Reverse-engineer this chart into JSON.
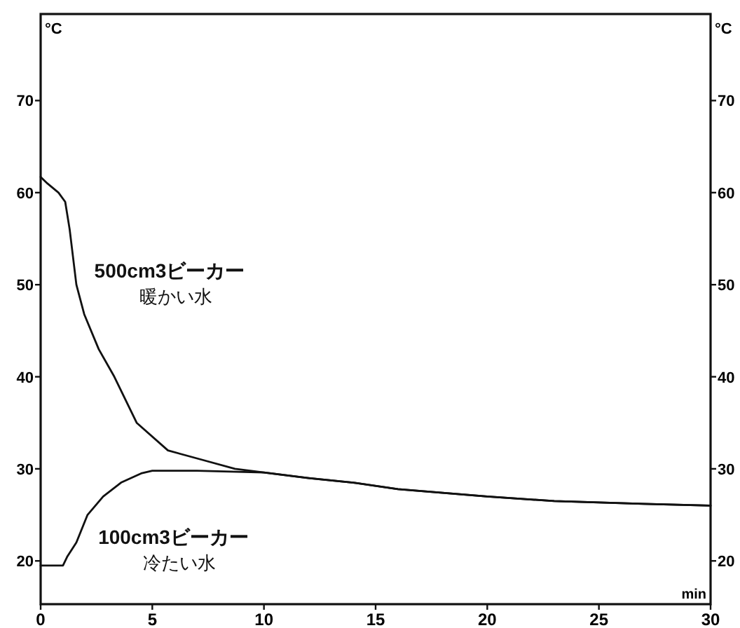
{
  "chart_data": {
    "type": "line",
    "xlabel": "min",
    "ylabel": "°C",
    "y2label": "°C",
    "xlim": [
      0,
      30
    ],
    "xticks": [
      0,
      5,
      10,
      15,
      20,
      25,
      30
    ],
    "ylim": [
      15.3,
      79.4
    ],
    "yticks": [
      20,
      30,
      40,
      50,
      60,
      70
    ],
    "y2lim": [
      15.3,
      79.4
    ],
    "y2ticks": [
      20,
      30,
      40,
      50,
      60,
      70
    ],
    "grid": false,
    "marker": "none",
    "line_style": "solid",
    "annotations": [
      "暖かい水",
      "冷たい水"
    ],
    "series": [
      {
        "name": "500cm3ビーカー",
        "color": "#111111",
        "x": [
          0,
          0.3,
          0.8,
          1.1,
          1.3,
          1.6,
          1.95,
          2.6,
          3.3,
          4.3,
          5.7,
          7.2,
          8.7,
          10,
          12,
          14,
          16,
          18,
          20,
          23,
          27,
          30
        ],
        "values": [
          61.7,
          61,
          60,
          59,
          56,
          50,
          46.8,
          43,
          40,
          35,
          32,
          31,
          30,
          29.6,
          29,
          28.5,
          27.8,
          27.4,
          27,
          26.5,
          26.2,
          26
        ]
      },
      {
        "name": "100cm3ビーカー",
        "color": "#111111",
        "x": [
          0,
          1.0,
          1.2,
          1.6,
          2.1,
          2.8,
          3.6,
          4.5,
          5,
          7,
          10,
          12,
          14,
          16,
          18,
          20,
          23,
          27,
          30
        ],
        "values": [
          19.5,
          19.5,
          20.5,
          22,
          25,
          27,
          28.5,
          29.5,
          29.8,
          29.8,
          29.6,
          29,
          28.5,
          27.8,
          27.4,
          27,
          26.5,
          26.2,
          26
        ]
      }
    ]
  }
}
